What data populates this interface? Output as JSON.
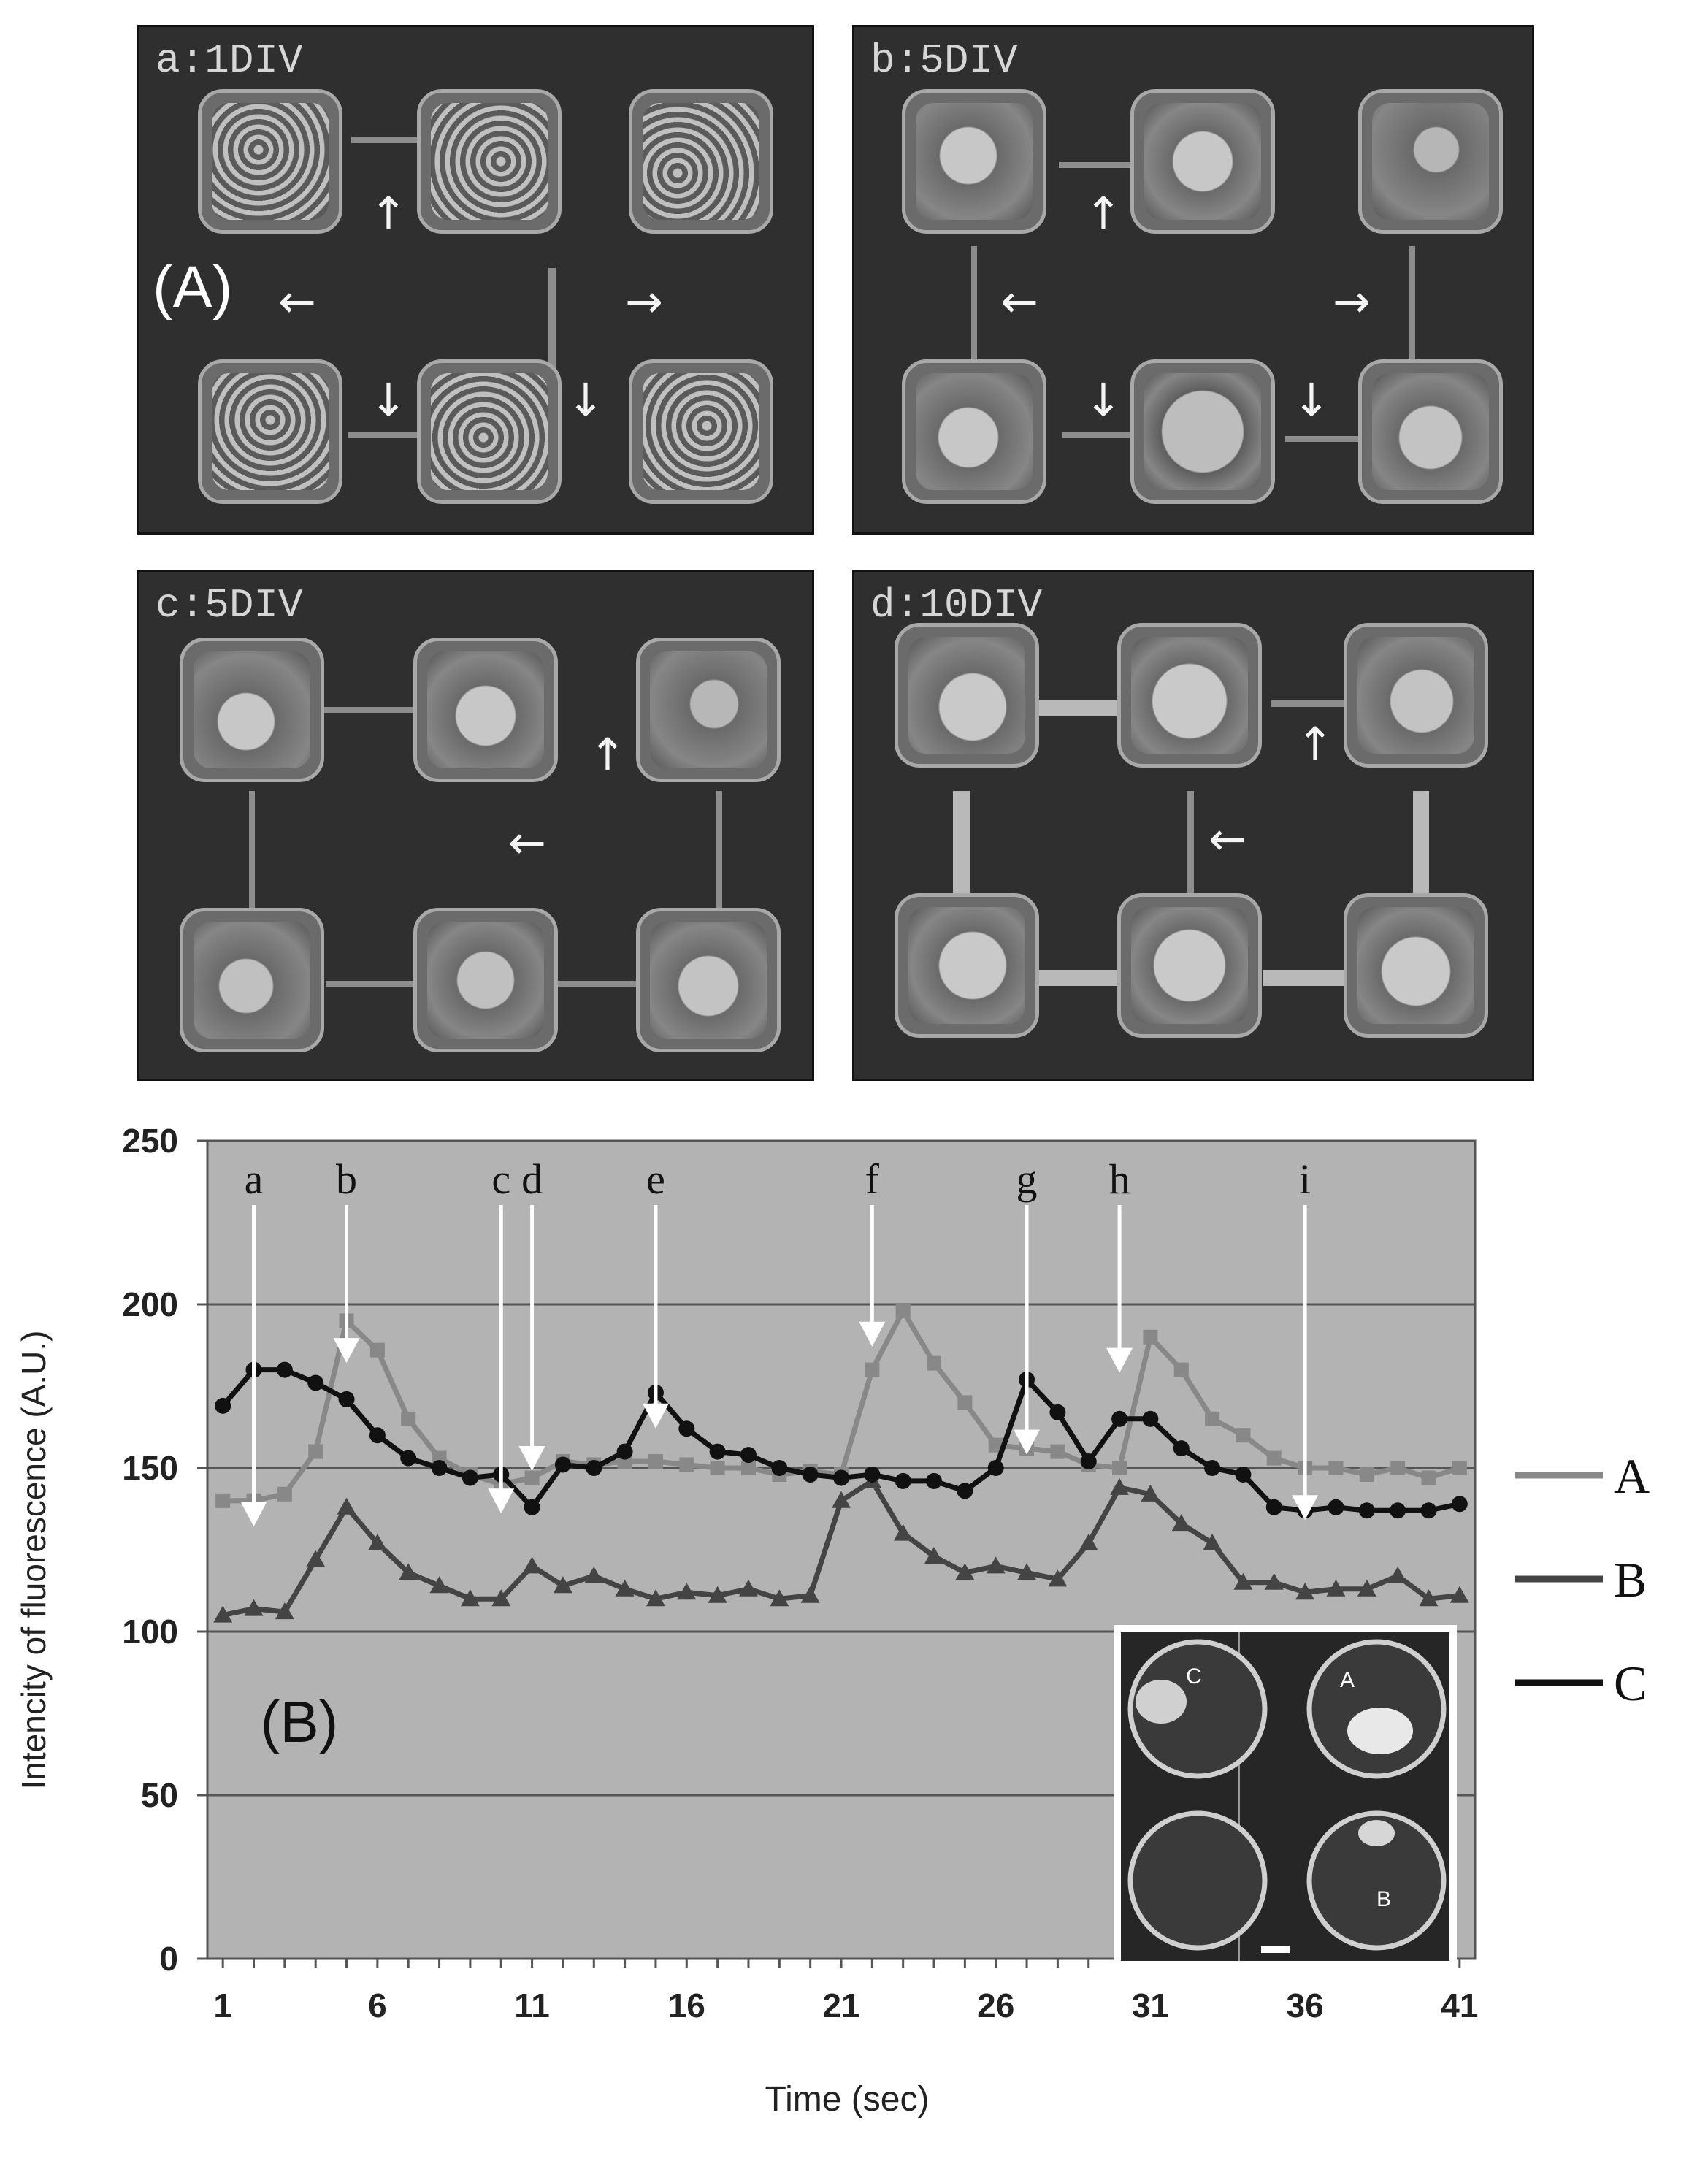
{
  "panel_a": {
    "letter": "(A)",
    "subpanels": [
      {
        "label": "a:1DIV"
      },
      {
        "label": "b:5DIV"
      },
      {
        "label": "c:5DIV"
      },
      {
        "label": "d:10DIV"
      }
    ]
  },
  "arrow_glyphs": {
    "up": "↑",
    "down": "↓",
    "left": "←",
    "right": "→"
  },
  "chart_data": {
    "type": "line",
    "panel_letter": "(B)",
    "xlabel": "Time (sec)",
    "ylabel": "Intencity of fluorescence (A.U.)",
    "x_ticks": [
      "1",
      "6",
      "11",
      "16",
      "21",
      "26",
      "31",
      "36",
      "41"
    ],
    "y_ticks": [
      "0",
      "50",
      "100",
      "150",
      "200",
      "250"
    ],
    "xlim": [
      0.5,
      41.5
    ],
    "ylim": [
      0,
      250
    ],
    "grid": "horizontal",
    "background_color": "#b3b3b3",
    "x": [
      1,
      2,
      3,
      4,
      5,
      6,
      7,
      8,
      9,
      10,
      11,
      12,
      13,
      14,
      15,
      16,
      17,
      18,
      19,
      20,
      21,
      22,
      23,
      24,
      25,
      26,
      27,
      28,
      29,
      30,
      31,
      32,
      33,
      34,
      35,
      36,
      37,
      38,
      39,
      40,
      41
    ],
    "series": [
      {
        "name": "A",
        "marker": "square",
        "color": "#888888",
        "values": [
          140,
          140,
          142,
          155,
          195,
          186,
          165,
          153,
          148,
          145,
          147,
          152,
          151,
          152,
          152,
          151,
          150,
          150,
          148,
          149,
          148,
          180,
          198,
          182,
          170,
          157,
          156,
          155,
          151,
          150,
          190,
          180,
          165,
          160,
          153,
          150,
          150,
          148,
          150,
          147,
          150
        ]
      },
      {
        "name": "B",
        "marker": "triangle",
        "color": "#444444",
        "values": [
          105,
          107,
          106,
          122,
          138,
          127,
          118,
          114,
          110,
          110,
          120,
          114,
          117,
          113,
          110,
          112,
          111,
          113,
          110,
          111,
          140,
          146,
          130,
          123,
          118,
          120,
          118,
          116,
          127,
          144,
          142,
          133,
          127,
          115,
          115,
          112,
          113,
          113,
          117,
          110,
          111
        ]
      },
      {
        "name": "C",
        "marker": "circle",
        "color": "#111111",
        "values": [
          169,
          180,
          180,
          176,
          171,
          160,
          153,
          150,
          147,
          148,
          138,
          151,
          150,
          155,
          173,
          162,
          155,
          154,
          150,
          148,
          147,
          148,
          146,
          146,
          143,
          150,
          177,
          167,
          152,
          165,
          165,
          156,
          150,
          148,
          138,
          137,
          138,
          137,
          137,
          137,
          139
        ]
      }
    ],
    "legend_position": "right",
    "annotations": [
      {
        "label": "a",
        "x": 2,
        "y": 133
      },
      {
        "label": "b",
        "x": 5,
        "y": 183
      },
      {
        "label": "c",
        "x": 10,
        "y": 137
      },
      {
        "label": "d",
        "x": 11,
        "y": 150
      },
      {
        "label": "e",
        "x": 15,
        "y": 163
      },
      {
        "label": "f",
        "x": 22,
        "y": 188
      },
      {
        "label": "g",
        "x": 27,
        "y": 155
      },
      {
        "label": "h",
        "x": 30,
        "y": 180
      },
      {
        "label": "i",
        "x": 36,
        "y": 135
      }
    ],
    "inset": {
      "labels": [
        "C",
        "A",
        "B"
      ]
    }
  }
}
